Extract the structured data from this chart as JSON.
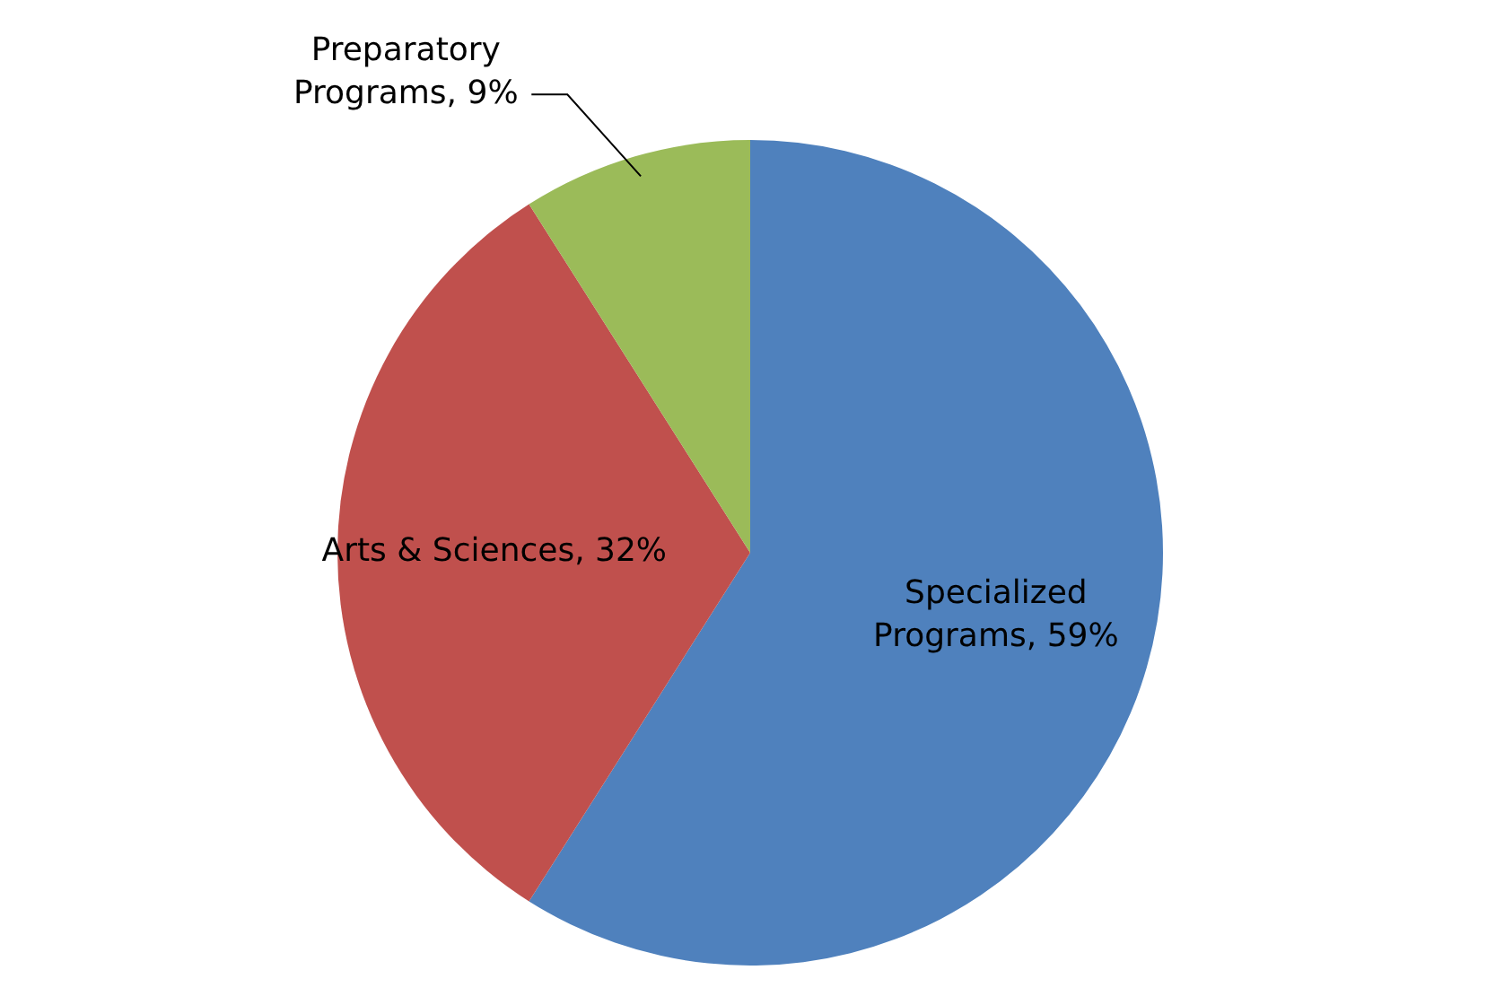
{
  "chart_data": {
    "type": "pie",
    "categories": [
      "Specialized Programs",
      "Arts & Sciences",
      "Preparatory Programs"
    ],
    "values": [
      59,
      32,
      9
    ],
    "value_labels": [
      "59%",
      "32%",
      "9%"
    ],
    "colors": [
      "#4f81bd",
      "#c0504d",
      "#9bbb59"
    ],
    "legend": false
  }
}
